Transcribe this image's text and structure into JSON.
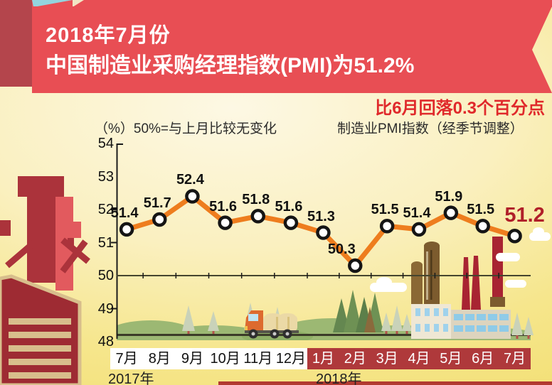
{
  "banner": {
    "title_line1": "2018年7月份",
    "title_line2": "中国制造业采购经理指数(PMI)为51.2%"
  },
  "sub_headline": "比6月回落0.3个百分点",
  "notes": {
    "left": "（%）50%=与上月比较无变化",
    "right": "制造业PMI指数（经季节调整）"
  },
  "colors": {
    "banner_red": "#E84E54",
    "fold_dark_red": "#B4454C",
    "teal_accent": "#93D4DE",
    "line_orange": "#EE7D1E",
    "highlight_red": "#B01F29",
    "month_strip_red": "#AF393B",
    "sub_headline_red": "#E0292B"
  },
  "chart_data": {
    "type": "line",
    "title": "制造业PMI指数（经季节调整）",
    "unit": "%",
    "ylabel": "（%）",
    "reference_note": "50%=与上月比较无变化",
    "x_groups": [
      {
        "year": "2017年",
        "months": [
          "7月",
          "8月",
          "9月",
          "10月",
          "11月",
          "12月"
        ]
      },
      {
        "year": "2018年",
        "months": [
          "1月",
          "2月",
          "3月",
          "4月",
          "5月",
          "6月",
          "7月"
        ]
      }
    ],
    "values": [
      51.4,
      51.7,
      52.4,
      51.6,
      51.8,
      51.6,
      51.3,
      50.3,
      51.5,
      51.4,
      51.9,
      51.5,
      51.2
    ],
    "ylim": [
      48,
      54
    ],
    "yticks": [
      54,
      53,
      52,
      51,
      50,
      49,
      48
    ],
    "reference_line": 50,
    "highlight_index": 12,
    "highlight_value": "51.2"
  }
}
